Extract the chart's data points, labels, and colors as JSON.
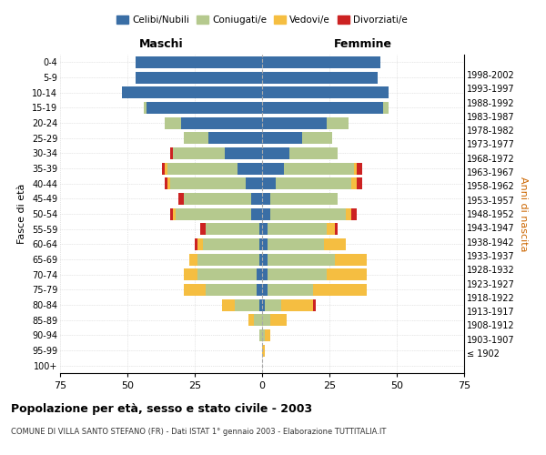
{
  "age_groups": [
    "100+",
    "95-99",
    "90-94",
    "85-89",
    "80-84",
    "75-79",
    "70-74",
    "65-69",
    "60-64",
    "55-59",
    "50-54",
    "45-49",
    "40-44",
    "35-39",
    "30-34",
    "25-29",
    "20-24",
    "15-19",
    "10-14",
    "5-9",
    "0-4"
  ],
  "birth_years": [
    "≤ 1902",
    "1903-1907",
    "1908-1912",
    "1913-1917",
    "1918-1922",
    "1923-1927",
    "1928-1932",
    "1933-1937",
    "1938-1942",
    "1943-1947",
    "1948-1952",
    "1953-1957",
    "1958-1962",
    "1963-1967",
    "1968-1972",
    "1973-1977",
    "1978-1982",
    "1983-1987",
    "1988-1992",
    "1993-1997",
    "1998-2002"
  ],
  "maschi": {
    "celibi": [
      0,
      0,
      0,
      0,
      1,
      2,
      2,
      1,
      1,
      1,
      4,
      4,
      6,
      9,
      14,
      20,
      30,
      43,
      52,
      47,
      47
    ],
    "coniugati": [
      0,
      0,
      1,
      3,
      9,
      19,
      22,
      23,
      21,
      20,
      28,
      25,
      28,
      26,
      19,
      9,
      6,
      1,
      0,
      0,
      0
    ],
    "vedovi": [
      0,
      0,
      0,
      2,
      5,
      8,
      5,
      3,
      2,
      0,
      1,
      0,
      1,
      1,
      0,
      0,
      0,
      0,
      0,
      0,
      0
    ],
    "divorziati": [
      0,
      0,
      0,
      0,
      0,
      0,
      0,
      0,
      1,
      2,
      1,
      2,
      1,
      1,
      1,
      0,
      0,
      0,
      0,
      0,
      0
    ]
  },
  "femmine": {
    "nubili": [
      0,
      0,
      0,
      0,
      1,
      2,
      2,
      2,
      2,
      2,
      3,
      3,
      5,
      8,
      10,
      15,
      24,
      45,
      47,
      43,
      44
    ],
    "coniugate": [
      0,
      0,
      1,
      3,
      6,
      17,
      22,
      25,
      21,
      22,
      28,
      25,
      28,
      26,
      18,
      11,
      8,
      2,
      0,
      0,
      0
    ],
    "vedove": [
      0,
      1,
      2,
      6,
      12,
      20,
      15,
      12,
      8,
      3,
      2,
      0,
      2,
      1,
      0,
      0,
      0,
      0,
      0,
      0,
      0
    ],
    "divorziate": [
      0,
      0,
      0,
      0,
      1,
      0,
      0,
      0,
      0,
      1,
      2,
      0,
      2,
      2,
      0,
      0,
      0,
      0,
      0,
      0,
      0
    ]
  },
  "colors": {
    "celibi": "#3a6ea5",
    "coniugati": "#b5c98e",
    "vedovi": "#f5be41",
    "divorziati": "#cc2222"
  },
  "xlim": 75,
  "title": "Popolazione per età, sesso e stato civile - 2003",
  "subtitle": "COMUNE DI VILLA SANTO STEFANO (FR) - Dati ISTAT 1° gennaio 2003 - Elaborazione TUTTITALIA.IT",
  "ylabel_left": "Fasce di età",
  "ylabel_right": "Anni di nascita",
  "xlabel_left": "Maschi",
  "xlabel_right": "Femmine",
  "bg_color": "#ffffff",
  "grid_color": "#cccccc"
}
